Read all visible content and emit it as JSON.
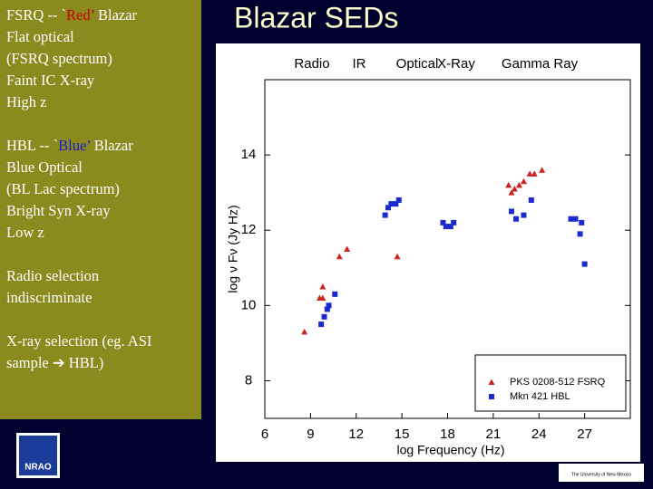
{
  "panel": {
    "paragraphs": [
      [
        [
          {
            "text": "FSRQ -- `"
          },
          {
            "text": "Red’",
            "color": "#cc0000"
          },
          {
            "text": " Blazar"
          }
        ],
        [
          {
            "text": "Flat optical"
          }
        ],
        [
          {
            "text": "(FSRQ spectrum)"
          }
        ],
        [
          {
            "text": "Faint IC X-ray"
          }
        ],
        [
          {
            "text": "High z"
          }
        ]
      ],
      [
        [
          {
            "text": "HBL -- `"
          },
          {
            "text": "Blue’",
            "color": "#1a1acc"
          },
          {
            "text": " Blazar"
          }
        ],
        [
          {
            "text": "Blue Optical"
          }
        ],
        [
          {
            "text": "(BL Lac spectrum)"
          }
        ],
        [
          {
            "text": "Bright Syn X-ray"
          }
        ],
        [
          {
            "text": "Low z"
          }
        ]
      ],
      [
        [
          {
            "text": "Radio selection"
          }
        ],
        [
          {
            "text": "indiscriminate"
          }
        ]
      ],
      [
        [
          {
            "text": "X-ray selection (eg. ASI"
          }
        ],
        [
          {
            "text": "sample ➔ HBL)"
          }
        ]
      ]
    ]
  },
  "slide_title": "Blazar SEDs",
  "logos": {
    "left": "NRAO",
    "right": "The University of New Mexico"
  },
  "chart_data": {
    "type": "scatter",
    "bands": [
      "Radio",
      "IR",
      "Optical",
      "X-Ray",
      "Gamma Ray"
    ],
    "xlabel": "log Frequency (Hz)",
    "ylabel": "log ν Fν   (Jy Hz)",
    "xlim": [
      6,
      30
    ],
    "ylim": [
      7,
      16
    ],
    "xticks": [
      6,
      9,
      12,
      15,
      18,
      21,
      24,
      27
    ],
    "yticks": [
      8,
      10,
      12,
      14
    ],
    "legend": "lower right",
    "series": [
      {
        "name": "PKS 0208-512 FSRQ",
        "color": "#cc2222",
        "marker": "triangle",
        "x": [
          8.6,
          9.6,
          9.8,
          9.8,
          10.9,
          11.4,
          14.7,
          22.0,
          22.2,
          22.4,
          22.7,
          23.0,
          23.4,
          23.7,
          24.2
        ],
        "values": [
          9.3,
          10.2,
          10.5,
          10.2,
          11.3,
          11.5,
          11.3,
          13.2,
          13.0,
          13.1,
          13.2,
          13.3,
          13.5,
          13.5,
          13.6
        ]
      },
      {
        "name": "Mkn 421 HBL",
        "color": "#1a2ad0",
        "marker": "square",
        "x": [
          9.7,
          9.9,
          10.1,
          10.2,
          10.6,
          13.9,
          14.1,
          14.3,
          14.6,
          14.8,
          17.7,
          17.9,
          18.2,
          18.4,
          22.2,
          22.5,
          23.0,
          23.5,
          26.1,
          26.4,
          26.7,
          26.8,
          27.0
        ],
        "values": [
          9.5,
          9.7,
          9.9,
          10.0,
          10.3,
          12.4,
          12.6,
          12.7,
          12.7,
          12.8,
          12.2,
          12.1,
          12.1,
          12.2,
          12.5,
          12.3,
          12.4,
          12.8,
          12.3,
          12.3,
          11.9,
          12.2,
          11.1
        ]
      }
    ]
  }
}
